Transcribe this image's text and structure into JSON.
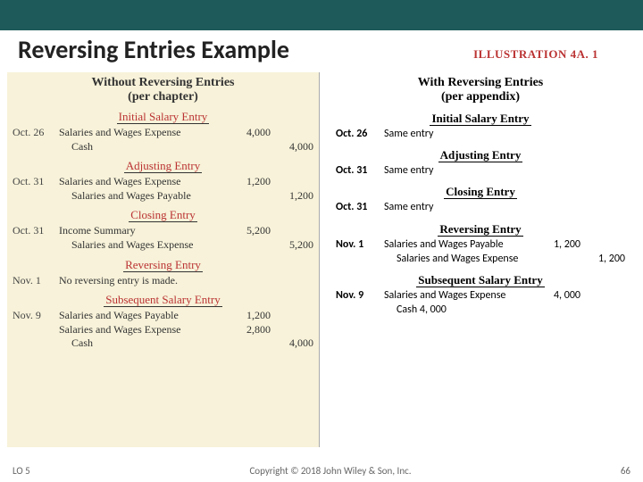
{
  "header": {
    "title": "Reversing Entries Example",
    "illustration_label": "ILLUSTRATION 4A. 1"
  },
  "left": {
    "column_title": "Without Reversing Entries\n(per chapter)",
    "sections": [
      {
        "heading": "Initial Salary Entry",
        "rows": [
          {
            "date": "Oct. 26",
            "acct": "Salaries and Wages Expense",
            "dr": "4,000",
            "cr": ""
          },
          {
            "date": "",
            "acct": "Cash",
            "indent": true,
            "dr": "",
            "cr": "4,000"
          }
        ]
      },
      {
        "heading": "Adjusting Entry",
        "rows": [
          {
            "date": "Oct. 31",
            "acct": "Salaries and Wages Expense",
            "dr": "1,200",
            "cr": ""
          },
          {
            "date": "",
            "acct": "Salaries and Wages Payable",
            "indent": true,
            "dr": "",
            "cr": "1,200"
          }
        ]
      },
      {
        "heading": "Closing Entry",
        "rows": [
          {
            "date": "Oct. 31",
            "acct": "Income Summary",
            "dr": "5,200",
            "cr": ""
          },
          {
            "date": "",
            "acct": "Salaries and Wages Expense",
            "indent": true,
            "dr": "",
            "cr": "5,200"
          }
        ]
      },
      {
        "heading": "Reversing Entry",
        "rows": [
          {
            "date": "Nov. 1",
            "acct": "No reversing entry is made.",
            "dr": "",
            "cr": ""
          }
        ]
      },
      {
        "heading": "Subsequent Salary Entry",
        "rows": [
          {
            "date": "Nov. 9",
            "acct": "Salaries and Wages Payable",
            "dr": "1,200",
            "cr": ""
          },
          {
            "date": "",
            "acct": "Salaries and Wages Expense",
            "dr": "2,800",
            "cr": ""
          },
          {
            "date": "",
            "acct": "Cash",
            "indent": true,
            "dr": "",
            "cr": "4,000"
          }
        ]
      }
    ]
  },
  "right": {
    "column_title": "With Reversing Entries\n(per appendix)",
    "sections": [
      {
        "heading": "Initial Salary Entry",
        "rows": [
          {
            "date": "Oct. 26",
            "acct": "Same entry",
            "dr": "",
            "cr": ""
          }
        ]
      },
      {
        "heading": "Adjusting Entry",
        "rows": [
          {
            "date": "Oct. 31",
            "acct": "Same entry",
            "dr": "",
            "cr": ""
          }
        ]
      },
      {
        "heading": "Closing Entry",
        "rows": [
          {
            "date": "Oct. 31",
            "acct": "Same entry",
            "dr": "",
            "cr": ""
          }
        ]
      },
      {
        "heading": "Reversing Entry",
        "rows": [
          {
            "date": "Nov. 1",
            "acct": "Salaries and Wages Payable",
            "dr": "1, 200",
            "cr": ""
          },
          {
            "date": "",
            "acct": "Salaries and Wages Expense",
            "indent": true,
            "dr": "",
            "cr": "1, 200"
          }
        ]
      },
      {
        "heading": "Subsequent Salary Entry",
        "rows": [
          {
            "date": "Nov. 9",
            "acct": "Salaries and Wages Expense",
            "dr": "4, 000",
            "cr": ""
          },
          {
            "date": "",
            "acct": "Cash  4, 000",
            "indent": true,
            "dr": "",
            "cr": ""
          }
        ]
      }
    ]
  },
  "footer": {
    "lo": "LO 5",
    "copyright": "Copyright © 2018 John Wiley & Son, Inc.",
    "page": "66"
  }
}
